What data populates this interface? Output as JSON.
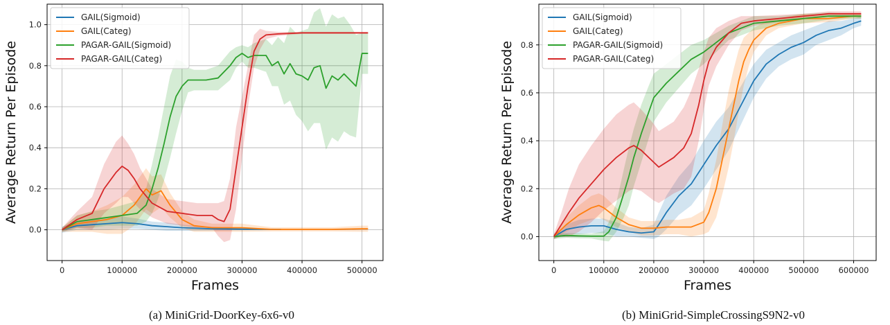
{
  "chart_data": [
    {
      "type": "line",
      "caption": "(a) MiniGrid-DoorKey-6x6-v0",
      "xlabel": "Frames",
      "ylabel": "Average Return Per Episode",
      "xlim": [
        -25000,
        535000
      ],
      "ylim": [
        -0.15,
        1.1
      ],
      "xticks": [
        0,
        100000,
        200000,
        300000,
        400000,
        500000
      ],
      "xtick_labels": [
        "0",
        "100000",
        "200000",
        "300000",
        "400000",
        "500000"
      ],
      "yticks": [
        0.0,
        0.2,
        0.4,
        0.6,
        0.8,
        1.0
      ],
      "ytick_labels": [
        "0.0",
        "0.2",
        "0.4",
        "0.6",
        "0.8",
        "1.0"
      ],
      "grid": true,
      "legend_position": "top-left",
      "series": [
        {
          "name": "GAIL(Sigmoid)",
          "color": "#1f77b4",
          "x": [
            0,
            25000,
            50000,
            75000,
            100000,
            125000,
            150000,
            175000,
            200000,
            250000,
            300000,
            365000
          ],
          "y": [
            0,
            0.02,
            0.025,
            0.03,
            0.035,
            0.03,
            0.02,
            0.015,
            0.01,
            0.005,
            0.003,
            0.002
          ],
          "band": [
            0.015,
            0.02,
            0.025,
            0.03,
            0.03,
            0.025,
            0.02,
            0.02,
            0.015,
            0.01,
            0.005,
            0.003
          ]
        },
        {
          "name": "GAIL(Categ)",
          "color": "#ff7f0e",
          "x": [
            0,
            25000,
            50000,
            75000,
            100000,
            120000,
            140000,
            150000,
            165000,
            180000,
            200000,
            220000,
            250000,
            300000,
            350000,
            400000,
            450000,
            500000,
            510000
          ],
          "y": [
            0,
            0.03,
            0.04,
            0.05,
            0.07,
            0.12,
            0.2,
            0.17,
            0.19,
            0.12,
            0.05,
            0.02,
            0.01,
            0.01,
            0.002,
            0.002,
            0.002,
            0.005,
            0.005
          ],
          "band": [
            0.01,
            0.04,
            0.05,
            0.07,
            0.09,
            0.1,
            0.1,
            0.09,
            0.08,
            0.06,
            0.04,
            0.03,
            0.02,
            0.02,
            0.01,
            0.01,
            0.01,
            0.015,
            0.015
          ]
        },
        {
          "name": "PAGAR-GAIL(Sigmoid)",
          "color": "#2ca02c",
          "x": [
            0,
            25000,
            50000,
            75000,
            100000,
            125000,
            140000,
            150000,
            160000,
            170000,
            180000,
            190000,
            200000,
            210000,
            220000,
            240000,
            260000,
            280000,
            290000,
            300000,
            310000,
            320000,
            340000,
            350000,
            360000,
            370000,
            380000,
            390000,
            400000,
            410000,
            420000,
            430000,
            440000,
            450000,
            460000,
            470000,
            480000,
            490000,
            500000,
            510000
          ],
          "y": [
            0,
            0.04,
            0.05,
            0.06,
            0.07,
            0.08,
            0.12,
            0.2,
            0.3,
            0.42,
            0.55,
            0.65,
            0.7,
            0.73,
            0.73,
            0.73,
            0.74,
            0.8,
            0.84,
            0.86,
            0.84,
            0.85,
            0.85,
            0.8,
            0.82,
            0.76,
            0.81,
            0.76,
            0.75,
            0.73,
            0.79,
            0.8,
            0.69,
            0.75,
            0.73,
            0.76,
            0.73,
            0.7,
            0.86,
            0.86
          ],
          "band": [
            0.01,
            0.03,
            0.04,
            0.04,
            0.05,
            0.06,
            0.08,
            0.12,
            0.15,
            0.18,
            0.2,
            0.18,
            0.12,
            0.06,
            0.05,
            0.05,
            0.06,
            0.07,
            0.05,
            0.04,
            0.05,
            0.06,
            0.08,
            0.1,
            0.12,
            0.15,
            0.18,
            0.2,
            0.22,
            0.25,
            0.27,
            0.28,
            0.3,
            0.3,
            0.3,
            0.28,
            0.27,
            0.25,
            0.1,
            0.1
          ]
        },
        {
          "name": "PAGAR-GAIL(Categ)",
          "color": "#d62728",
          "x": [
            0,
            25000,
            50000,
            70000,
            90000,
            100000,
            110000,
            120000,
            130000,
            150000,
            175000,
            200000,
            225000,
            250000,
            260000,
            270000,
            280000,
            290000,
            300000,
            310000,
            320000,
            330000,
            340000,
            360000,
            400000,
            450000,
            510000
          ],
          "y": [
            0,
            0.05,
            0.08,
            0.2,
            0.28,
            0.31,
            0.29,
            0.25,
            0.2,
            0.13,
            0.09,
            0.08,
            0.07,
            0.07,
            0.05,
            0.04,
            0.1,
            0.3,
            0.5,
            0.7,
            0.87,
            0.93,
            0.95,
            0.955,
            0.96,
            0.96,
            0.96
          ],
          "band": [
            0.01,
            0.04,
            0.08,
            0.12,
            0.15,
            0.15,
            0.13,
            0.12,
            0.1,
            0.07,
            0.06,
            0.06,
            0.06,
            0.06,
            0.08,
            0.1,
            0.15,
            0.2,
            0.15,
            0.1,
            0.08,
            0.05,
            0.02,
            0.01,
            0.005,
            0.005,
            0.005
          ]
        }
      ]
    },
    {
      "type": "line",
      "caption": "(b) MiniGrid-SimpleCrossingS9N2-v0",
      "xlabel": "Frames",
      "ylabel": "Average Return Per Episode",
      "xlim": [
        -30000,
        645000
      ],
      "ylim": [
        -0.1,
        0.97
      ],
      "xticks": [
        0,
        100000,
        200000,
        300000,
        400000,
        500000,
        600000
      ],
      "xtick_labels": [
        "0",
        "100000",
        "200000",
        "300000",
        "400000",
        "500000",
        "600000"
      ],
      "yticks": [
        0.0,
        0.2,
        0.4,
        0.6,
        0.8
      ],
      "ytick_labels": [
        "0.0",
        "0.2",
        "0.4",
        "0.6",
        "0.8"
      ],
      "grid": true,
      "legend_position": "top-left",
      "series": [
        {
          "name": "GAIL(Sigmoid)",
          "color": "#1f77b4",
          "x": [
            0,
            25000,
            50000,
            75000,
            100000,
            125000,
            150000,
            175000,
            200000,
            210000,
            225000,
            250000,
            275000,
            300000,
            325000,
            350000,
            375000,
            400000,
            425000,
            450000,
            475000,
            500000,
            525000,
            550000,
            575000,
            600000,
            615000
          ],
          "y": [
            0,
            0.03,
            0.04,
            0.045,
            0.045,
            0.03,
            0.02,
            0.015,
            0.02,
            0.05,
            0.1,
            0.17,
            0.22,
            0.3,
            0.38,
            0.45,
            0.55,
            0.65,
            0.72,
            0.76,
            0.79,
            0.81,
            0.84,
            0.86,
            0.87,
            0.89,
            0.9
          ],
          "band": [
            0.01,
            0.02,
            0.03,
            0.03,
            0.03,
            0.03,
            0.02,
            0.02,
            0.03,
            0.05,
            0.07,
            0.08,
            0.09,
            0.1,
            0.1,
            0.09,
            0.08,
            0.07,
            0.06,
            0.05,
            0.05,
            0.05,
            0.04,
            0.04,
            0.03,
            0.02,
            0.02
          ]
        },
        {
          "name": "GAIL(Categ)",
          "color": "#ff7f0e",
          "x": [
            0,
            25000,
            50000,
            75000,
            90000,
            100000,
            125000,
            150000,
            175000,
            200000,
            225000,
            250000,
            275000,
            300000,
            310000,
            325000,
            340000,
            350000,
            360000,
            370000,
            380000,
            390000,
            400000,
            425000,
            450000,
            475000,
            500000,
            550000,
            600000,
            615000
          ],
          "y": [
            0,
            0.05,
            0.09,
            0.12,
            0.13,
            0.12,
            0.08,
            0.05,
            0.035,
            0.035,
            0.04,
            0.04,
            0.04,
            0.06,
            0.1,
            0.2,
            0.35,
            0.45,
            0.55,
            0.65,
            0.73,
            0.78,
            0.82,
            0.87,
            0.89,
            0.9,
            0.91,
            0.91,
            0.92,
            0.92
          ],
          "band": [
            0.01,
            0.03,
            0.04,
            0.05,
            0.05,
            0.05,
            0.04,
            0.03,
            0.03,
            0.03,
            0.03,
            0.03,
            0.04,
            0.05,
            0.08,
            0.12,
            0.15,
            0.16,
            0.15,
            0.13,
            0.1,
            0.07,
            0.05,
            0.03,
            0.02,
            0.02,
            0.02,
            0.015,
            0.01,
            0.01
          ]
        },
        {
          "name": "PAGAR-GAIL(Sigmoid)",
          "color": "#2ca02c",
          "x": [
            0,
            25000,
            50000,
            75000,
            100000,
            110000,
            125000,
            140000,
            150000,
            160000,
            175000,
            190000,
            200000,
            225000,
            250000,
            275000,
            300000,
            325000,
            350000,
            375000,
            400000,
            450000,
            500000,
            550000,
            600000,
            615000
          ],
          "y": [
            0,
            0.005,
            0.003,
            0.002,
            0.002,
            0.02,
            0.08,
            0.18,
            0.25,
            0.33,
            0.43,
            0.52,
            0.58,
            0.64,
            0.69,
            0.74,
            0.77,
            0.81,
            0.85,
            0.87,
            0.89,
            0.9,
            0.91,
            0.92,
            0.92,
            0.92
          ],
          "band": [
            0.01,
            0.01,
            0.01,
            0.01,
            0.02,
            0.04,
            0.06,
            0.1,
            0.12,
            0.12,
            0.12,
            0.11,
            0.1,
            0.08,
            0.07,
            0.06,
            0.05,
            0.04,
            0.03,
            0.03,
            0.03,
            0.02,
            0.02,
            0.015,
            0.01,
            0.01
          ]
        },
        {
          "name": "PAGAR-GAIL(Categ)",
          "color": "#d62728",
          "x": [
            0,
            15000,
            30000,
            50000,
            75000,
            100000,
            125000,
            150000,
            160000,
            175000,
            200000,
            210000,
            225000,
            240000,
            250000,
            260000,
            275000,
            290000,
            300000,
            310000,
            325000,
            350000,
            375000,
            400000,
            450000,
            500000,
            550000,
            600000,
            615000
          ],
          "y": [
            0,
            0.05,
            0.1,
            0.16,
            0.22,
            0.28,
            0.33,
            0.37,
            0.38,
            0.36,
            0.31,
            0.29,
            0.31,
            0.33,
            0.35,
            0.37,
            0.43,
            0.55,
            0.65,
            0.73,
            0.79,
            0.85,
            0.89,
            0.9,
            0.91,
            0.92,
            0.93,
            0.93,
            0.93
          ],
          "band": [
            0.01,
            0.05,
            0.1,
            0.14,
            0.16,
            0.17,
            0.18,
            0.18,
            0.18,
            0.17,
            0.16,
            0.15,
            0.15,
            0.15,
            0.16,
            0.17,
            0.18,
            0.15,
            0.12,
            0.1,
            0.08,
            0.05,
            0.03,
            0.02,
            0.015,
            0.01,
            0.01,
            0.01,
            0.01
          ]
        }
      ]
    }
  ]
}
